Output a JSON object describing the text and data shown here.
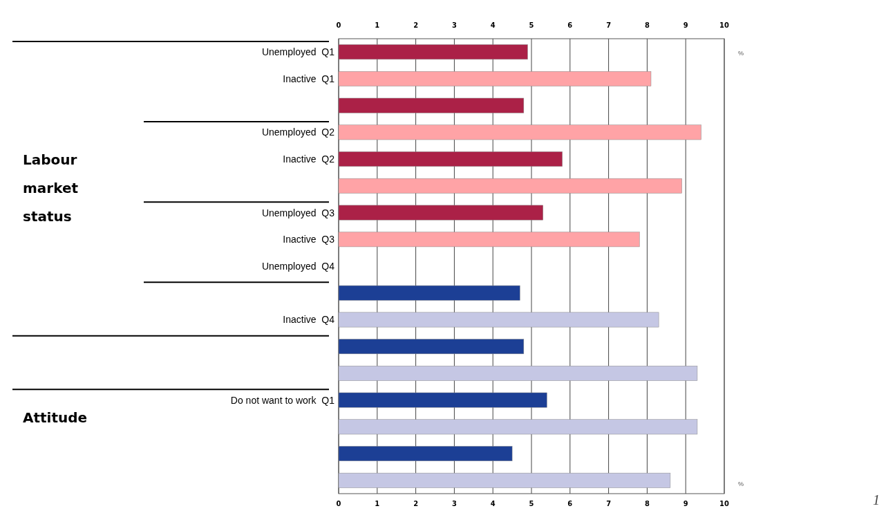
{
  "chart_data": {
    "type": "bar",
    "orientation": "horizontal",
    "categories": [
      "Unemployed  Q1",
      "Inactive  Q1",
      null,
      "Unemployed  Q2",
      "Inactive  Q2",
      null,
      "Unemployed  Q3",
      "Inactive  Q3",
      "Unemployed  Q4",
      null,
      "Inactive  Q4",
      null,
      null,
      "Do not want to work  Q1",
      null,
      null,
      null
    ],
    "values": [
      4.9,
      8.1,
      4.8,
      9.4,
      5.8,
      8.9,
      5.3,
      7.8,
      null,
      4.7,
      8.3,
      4.8,
      9.3,
      5.4,
      9.3,
      4.5,
      8.6
    ],
    "colors": [
      "#ab2147",
      "#ffa3a6",
      "#ab2147",
      "#ffa3a6",
      "#ab2147",
      "#ffa3a6",
      "#ab2147",
      "#ffa3a6",
      null,
      "#1c3f95",
      "#c5c7e4",
      "#1c3f95",
      "#c5c7e4",
      "#1c3f95",
      "#c5c7e4",
      "#1c3f95",
      "#c5c7e4"
    ],
    "xlim": [
      0,
      10
    ],
    "xticks": [
      0,
      1,
      2,
      3,
      4,
      5,
      6,
      7,
      8,
      9,
      10
    ],
    "x2lim": [
      0,
      10
    ],
    "x2ticks": [
      0,
      1,
      2,
      3,
      4,
      5,
      6,
      7,
      8,
      9,
      10
    ],
    "grid": "x",
    "annotations": [
      "Labour market status",
      "Attitude",
      "%",
      "%",
      "1"
    ]
  }
}
